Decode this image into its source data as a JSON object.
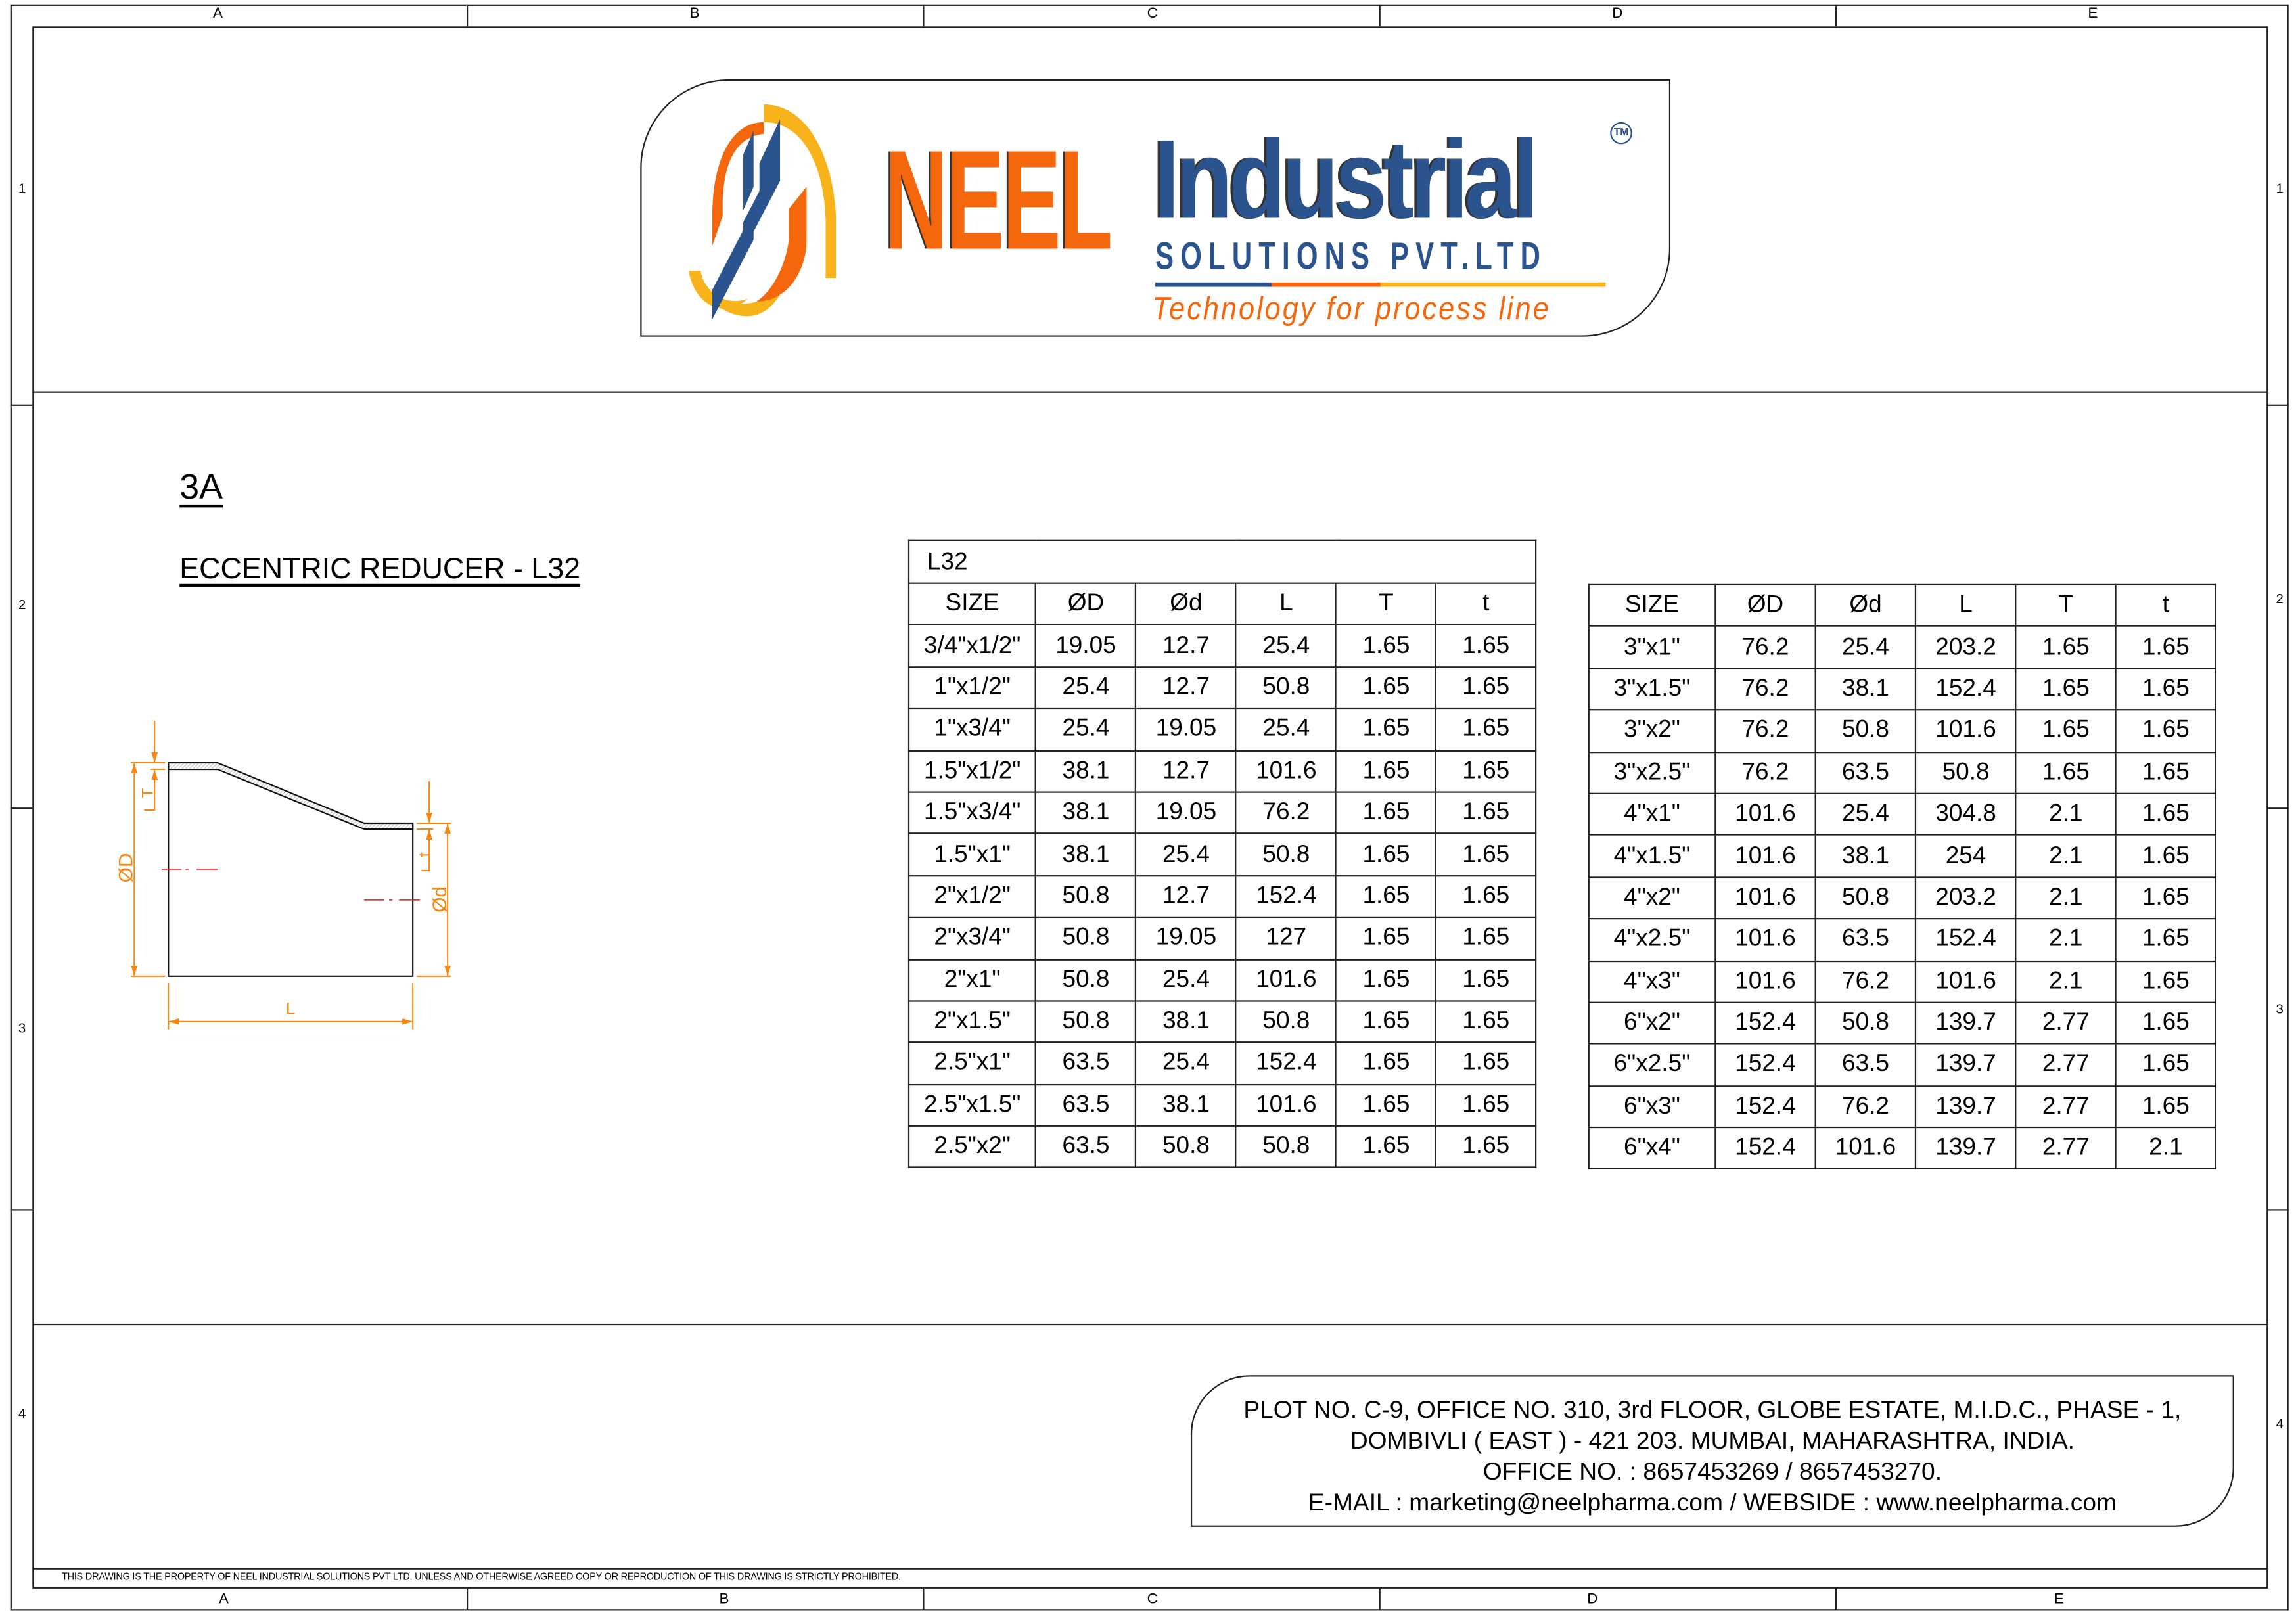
{
  "frame": {
    "columns": [
      "A",
      "B",
      "C",
      "D",
      "E"
    ],
    "rows": [
      "1",
      "2",
      "3",
      "4"
    ]
  },
  "logo": {
    "brand": "NEEL",
    "word": "Industrial",
    "sub": "SOLUTIONS PVT.LTD",
    "tagline": "Technology for process line",
    "tm": "TM",
    "colors": {
      "orange": "#f4670c",
      "blue": "#2b548f",
      "yellow": "#f9b31a"
    }
  },
  "drawing": {
    "code": "3A",
    "title": "ECCENTRIC REDUCER - L32",
    "labels": {
      "D": "ØD",
      "d": "Ød",
      "L": "L",
      "T": "T",
      "t": "t"
    },
    "colors": {
      "dimension": "#f7870f",
      "centerline": "#e8141b"
    }
  },
  "table1": {
    "caption": "L32",
    "headers": [
      "SIZE",
      "ØD",
      "Ød",
      "L",
      "T",
      "t"
    ],
    "rows": [
      [
        "3/4\"x1/2\"",
        "19.05",
        "12.7",
        "25.4",
        "1.65",
        "1.65"
      ],
      [
        "1\"x1/2\"",
        "25.4",
        "12.7",
        "50.8",
        "1.65",
        "1.65"
      ],
      [
        "1\"x3/4\"",
        "25.4",
        "19.05",
        "25.4",
        "1.65",
        "1.65"
      ],
      [
        "1.5\"x1/2\"",
        "38.1",
        "12.7",
        "101.6",
        "1.65",
        "1.65"
      ],
      [
        "1.5\"x3/4\"",
        "38.1",
        "19.05",
        "76.2",
        "1.65",
        "1.65"
      ],
      [
        "1.5\"x1\"",
        "38.1",
        "25.4",
        "50.8",
        "1.65",
        "1.65"
      ],
      [
        "2\"x1/2\"",
        "50.8",
        "12.7",
        "152.4",
        "1.65",
        "1.65"
      ],
      [
        "2\"x3/4\"",
        "50.8",
        "19.05",
        "127",
        "1.65",
        "1.65"
      ],
      [
        "2\"x1\"",
        "50.8",
        "25.4",
        "101.6",
        "1.65",
        "1.65"
      ],
      [
        "2\"x1.5\"",
        "50.8",
        "38.1",
        "50.8",
        "1.65",
        "1.65"
      ],
      [
        "2.5\"x1\"",
        "63.5",
        "25.4",
        "152.4",
        "1.65",
        "1.65"
      ],
      [
        "2.5\"x1.5\"",
        "63.5",
        "38.1",
        "101.6",
        "1.65",
        "1.65"
      ],
      [
        "2.5\"x2\"",
        "63.5",
        "50.8",
        "50.8",
        "1.65",
        "1.65"
      ]
    ]
  },
  "table2": {
    "headers": [
      "SIZE",
      "ØD",
      "Ød",
      "L",
      "T",
      "t"
    ],
    "rows": [
      [
        "3\"x1\"",
        "76.2",
        "25.4",
        "203.2",
        "1.65",
        "1.65"
      ],
      [
        "3\"x1.5\"",
        "76.2",
        "38.1",
        "152.4",
        "1.65",
        "1.65"
      ],
      [
        "3\"x2\"",
        "76.2",
        "50.8",
        "101.6",
        "1.65",
        "1.65"
      ],
      [
        "3\"x2.5\"",
        "76.2",
        "63.5",
        "50.8",
        "1.65",
        "1.65"
      ],
      [
        "4\"x1\"",
        "101.6",
        "25.4",
        "304.8",
        "2.1",
        "1.65"
      ],
      [
        "4\"x1.5\"",
        "101.6",
        "38.1",
        "254",
        "2.1",
        "1.65"
      ],
      [
        "4\"x2\"",
        "101.6",
        "50.8",
        "203.2",
        "2.1",
        "1.65"
      ],
      [
        "4\"x2.5\"",
        "101.6",
        "63.5",
        "152.4",
        "2.1",
        "1.65"
      ],
      [
        "4\"x3\"",
        "101.6",
        "76.2",
        "101.6",
        "2.1",
        "1.65"
      ],
      [
        "6\"x2\"",
        "152.4",
        "50.8",
        "139.7",
        "2.77",
        "1.65"
      ],
      [
        "6\"x2.5\"",
        "152.4",
        "63.5",
        "139.7",
        "2.77",
        "1.65"
      ],
      [
        "6\"x3\"",
        "152.4",
        "76.2",
        "139.7",
        "2.77",
        "1.65"
      ],
      [
        "6\"x4\"",
        "152.4",
        "101.6",
        "139.7",
        "2.77",
        "2.1"
      ]
    ]
  },
  "address": {
    "line1": "PLOT NO. C-9, OFFICE NO. 310, 3rd FLOOR, GLOBE ESTATE, M.I.D.C., PHASE - 1,",
    "line2": "DOMBIVLI ( EAST ) - 421 203. MUMBAI, MAHARASHTRA, INDIA.",
    "line3": "OFFICE NO. : 8657453269 / 8657453270.",
    "line4": "E-MAIL : marketing@neelpharma.com / WEBSIDE : www.neelpharma.com"
  },
  "disclaimer": "THIS DRAWING IS THE PROPERTY OF NEEL INDUSTRIAL SOLUTIONS PVT LTD. UNLESS AND OTHERWISE AGREED COPY OR REPRODUCTION OF THIS DRAWING IS STRICTLY PROHIBITED."
}
